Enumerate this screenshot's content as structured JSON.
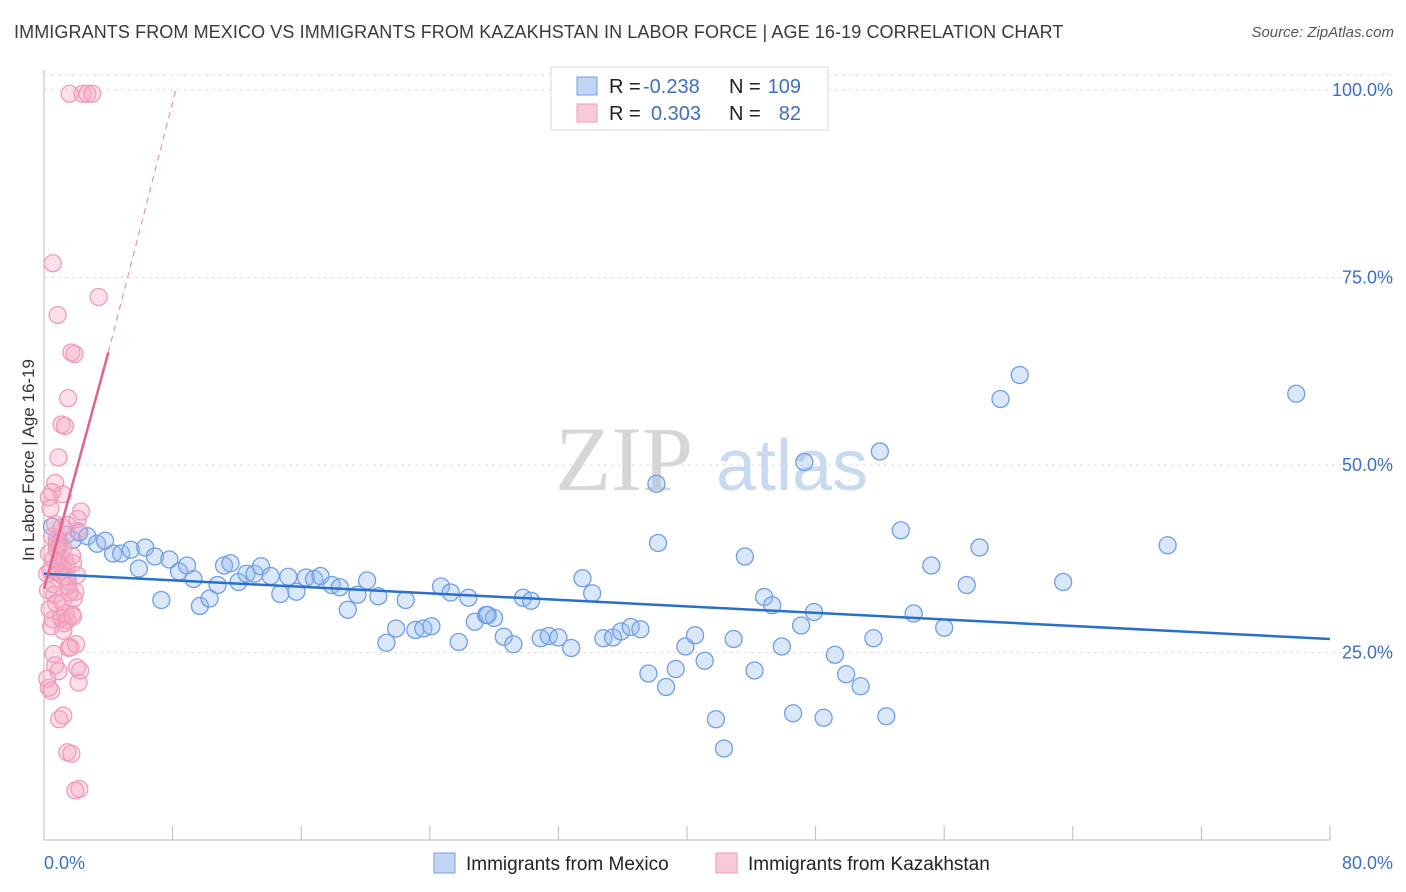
{
  "title": "IMMIGRANTS FROM MEXICO VS IMMIGRANTS FROM KAZAKHSTAN IN LABOR FORCE | AGE 16-19 CORRELATION CHART",
  "source": "Source: ZipAtlas.com",
  "watermark": {
    "zip": "ZIP",
    "atlas": "atlas"
  },
  "legend": {
    "mexico": {
      "r_label": "R =",
      "r_value": "-0.238",
      "n_label": "N =",
      "n_value": "109"
    },
    "kazakhstan": {
      "r_label": "R =",
      "r_value": "0.303",
      "n_label": "N =",
      "n_value": "82"
    }
  },
  "chart_data": {
    "type": "scatter",
    "title": "IMMIGRANTS FROM MEXICO VS IMMIGRANTS FROM KAZAKHSTAN IN LABOR FORCE | AGE 16-19 CORRELATION CHART",
    "xlabel": "",
    "ylabel": "In Labor Force | Age 16-19",
    "xlim": [
      0,
      80
    ],
    "ylim": [
      0,
      102
    ],
    "x_tick_labels": [
      "0.0%",
      "80.0%"
    ],
    "y_tick_values": [
      25,
      50,
      75,
      100
    ],
    "y_tick_labels": [
      "25.0%",
      "50.0%",
      "75.0%",
      "100.0%"
    ],
    "grid": true,
    "legend_position": "top-center",
    "colors": {
      "mexico": "#6f9ee8",
      "mexico_line": "#2a6fca",
      "kazakhstan": "#f19bb8",
      "kazakhstan_line": "#e0628e"
    },
    "series": [
      {
        "name": "Immigrants from Mexico",
        "R": -0.238,
        "N": 109,
        "trend": {
          "x": [
            0,
            80
          ],
          "y": [
            35.5,
            26.8
          ]
        },
        "x": [
          0.5,
          0.8,
          1.1,
          1.4,
          1.8,
          2.2,
          2.7,
          3.3,
          3.8,
          4.3,
          4.8,
          5.4,
          5.9,
          6.3,
          6.9,
          7.3,
          7.8,
          8.4,
          8.9,
          9.3,
          9.7,
          10.3,
          10.8,
          11.2,
          11.6,
          12.1,
          12.6,
          13.1,
          13.5,
          14.1,
          14.7,
          15.2,
          15.7,
          16.3,
          16.8,
          17.2,
          17.9,
          18.4,
          18.9,
          19.5,
          20.1,
          20.8,
          21.3,
          21.9,
          22.5,
          23.1,
          23.6,
          24.1,
          24.7,
          25.3,
          25.8,
          26.4,
          26.8,
          27.5,
          28.0,
          28.6,
          29.2,
          29.8,
          30.3,
          30.9,
          31.4,
          32.0,
          32.8,
          33.5,
          34.1,
          34.8,
          35.4,
          35.9,
          36.5,
          37.1,
          37.6,
          38.2,
          38.7,
          39.3,
          39.9,
          40.5,
          41.1,
          41.8,
          42.3,
          42.9,
          43.6,
          44.2,
          44.8,
          45.3,
          45.9,
          46.6,
          47.1,
          47.9,
          48.5,
          49.2,
          49.9,
          50.8,
          51.6,
          52.4,
          53.3,
          54.1,
          55.2,
          56.0,
          57.4,
          58.2,
          59.5,
          60.7,
          63.4,
          69.9,
          77.9,
          52.0,
          47.3,
          38.1,
          27.6
        ],
        "y": [
          41.8,
          39.5,
          36.5,
          40.7,
          40.0,
          41.0,
          40.5,
          39.5,
          39.9,
          38.2,
          38.2,
          38.7,
          36.2,
          39.0,
          37.8,
          32.0,
          37.4,
          35.8,
          36.6,
          34.8,
          31.2,
          32.2,
          34.0,
          36.6,
          36.9,
          34.4,
          35.5,
          35.5,
          36.5,
          35.2,
          32.8,
          35.1,
          33.1,
          35.0,
          34.8,
          35.2,
          34.0,
          33.7,
          30.7,
          32.7,
          34.6,
          32.5,
          26.3,
          28.2,
          32.0,
          28.0,
          28.2,
          28.5,
          33.8,
          33.0,
          26.4,
          32.3,
          29.1,
          30.0,
          29.6,
          27.1,
          26.1,
          32.3,
          31.9,
          26.9,
          27.2,
          27.0,
          25.6,
          34.9,
          32.9,
          26.9,
          27.0,
          27.8,
          28.4,
          28.1,
          22.2,
          39.6,
          20.4,
          22.8,
          25.8,
          27.3,
          23.9,
          16.1,
          12.2,
          26.8,
          37.8,
          22.6,
          32.4,
          31.3,
          25.8,
          16.9,
          28.6,
          30.4,
          16.3,
          24.7,
          22.1,
          20.5,
          26.9,
          16.5,
          41.3,
          30.2,
          36.6,
          28.3,
          34.0,
          39.0,
          58.8,
          62.0,
          34.4,
          39.3,
          59.5,
          51.8,
          50.4,
          47.5,
          30.0
        ]
      },
      {
        "name": "Immigrants from Kazakhstan",
        "R": 0.303,
        "N": 82,
        "trend": {
          "x": [
            0,
            4
          ],
          "y": [
            33.5,
            65.0
          ],
          "dashed_extension_to": [
            8.2,
            100
          ]
        },
        "x": [
          0.2,
          0.3,
          0.4,
          0.5,
          0.6,
          0.7,
          0.8,
          0.9,
          1.0,
          1.1,
          1.2,
          1.3,
          1.4,
          1.5,
          0.25,
          0.35,
          0.45,
          0.55,
          0.65,
          0.75,
          0.85,
          0.95,
          1.05,
          1.15,
          1.25,
          1.35,
          1.45,
          1.55,
          1.65,
          1.75,
          1.85,
          1.95,
          2.05,
          2.15,
          2.25,
          0.3,
          0.5,
          0.7,
          0.9,
          1.1,
          1.3,
          1.5,
          1.7,
          1.9,
          2.1,
          2.3,
          0.4,
          0.6,
          0.8,
          1.0,
          1.2,
          1.4,
          1.6,
          1.8,
          2.0,
          0.2,
          0.45,
          0.7,
          0.95,
          1.2,
          1.45,
          1.7,
          1.95,
          2.2,
          0.3,
          0.6,
          0.9,
          1.2,
          1.5,
          1.8,
          2.1,
          2.4,
          2.7,
          3.0,
          3.4,
          0.55,
          0.85,
          1.15,
          1.45,
          1.75,
          2.05,
          1.6
        ],
        "y": [
          35.5,
          38.2,
          36.0,
          40.5,
          34.1,
          42.1,
          38.7,
          37.0,
          39.6,
          41.7,
          35.1,
          37.3,
          36.5,
          34.5,
          33.3,
          30.8,
          28.5,
          29.4,
          32.7,
          31.6,
          35.6,
          35.7,
          29.6,
          31.7,
          28.9,
          30.2,
          29.3,
          25.6,
          25.7,
          30.1,
          32.2,
          33.1,
          23.0,
          21.0,
          22.6,
          45.7,
          46.4,
          47.6,
          51.0,
          55.4,
          55.2,
          58.9,
          65.0,
          64.8,
          42.8,
          43.8,
          44.2,
          37.5,
          40.1,
          39.3,
          38.9,
          35.1,
          33.0,
          29.8,
          26.1,
          21.5,
          19.9,
          23.3,
          16.1,
          16.6,
          11.7,
          11.5,
          6.6,
          6.8,
          20.3,
          24.8,
          22.5,
          27.9,
          33.9,
          36.9,
          41.2,
          99.5,
          99.5,
          99.5,
          72.4,
          76.9,
          70.0,
          46.1,
          42.0,
          37.9,
          35.3,
          99.5
        ]
      }
    ]
  },
  "bottom_legend": [
    {
      "label": "Immigrants from Mexico"
    },
    {
      "label": "Immigrants from Kazakhstan"
    }
  ]
}
